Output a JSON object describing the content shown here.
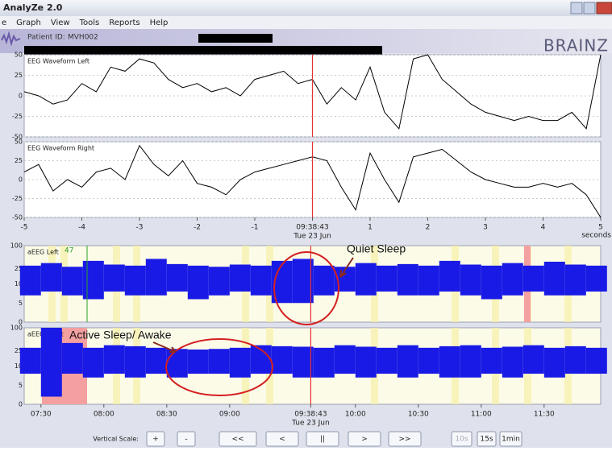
{
  "window": {
    "title": "AnalyZe 2.0"
  },
  "menu": [
    "e",
    "Graph",
    "View",
    "Tools",
    "Reports",
    "Help"
  ],
  "patient": {
    "label": "Patient ID:",
    "id": "MVH002"
  },
  "logo": "BRAINZ",
  "chart_data": [
    {
      "type": "line",
      "title": "EEG Waveform Left",
      "color": "#000000",
      "grid": true,
      "xlim": [
        -5,
        5
      ],
      "ylim": [
        -50,
        50
      ],
      "yticks": [
        50,
        25,
        0,
        -25,
        -50
      ],
      "cursor": 0,
      "x": [
        -5,
        -4.75,
        -4.5,
        -4.25,
        -4,
        -3.75,
        -3.5,
        -3.25,
        -3,
        -2.75,
        -2.5,
        -2.25,
        -2,
        -1.75,
        -1.5,
        -1.25,
        -1,
        -0.75,
        -0.5,
        -0.25,
        0,
        0.25,
        0.5,
        0.75,
        1,
        1.25,
        1.5,
        1.75,
        2,
        2.25,
        2.5,
        2.75,
        3,
        3.25,
        3.5,
        3.75,
        4,
        4.25,
        4.5,
        4.75,
        5
      ],
      "values": [
        5,
        0,
        -10,
        -5,
        15,
        5,
        35,
        30,
        45,
        40,
        20,
        10,
        15,
        5,
        10,
        0,
        20,
        25,
        30,
        15,
        20,
        -10,
        10,
        -5,
        35,
        -20,
        -40,
        45,
        50,
        20,
        5,
        -10,
        -20,
        -25,
        -30,
        -25,
        -30,
        -30,
        -20,
        -40,
        50
      ]
    },
    {
      "type": "line",
      "title": "EEG Waveform Right",
      "color": "#000000",
      "grid": true,
      "xlim": [
        -5,
        5
      ],
      "ylim": [
        -50,
        50
      ],
      "yticks": [
        50,
        25,
        0,
        -25,
        -50
      ],
      "cursor": 0,
      "xticks": [
        -5,
        -4,
        -3,
        -2,
        -1,
        {
          "value": 0,
          "label": "09:38:43"
        },
        1,
        2,
        3,
        4,
        5
      ],
      "x_sublabel": "Tue 23 Jun",
      "xlabel": "seconds",
      "x": [
        -5,
        -4.75,
        -4.5,
        -4.25,
        -4,
        -3.75,
        -3.5,
        -3.25,
        -3,
        -2.75,
        -2.5,
        -2.25,
        -2,
        -1.75,
        -1.5,
        -1.25,
        -1,
        -0.75,
        -0.5,
        -0.25,
        0,
        0.25,
        0.5,
        0.75,
        1,
        1.25,
        1.5,
        1.75,
        2,
        2.25,
        2.5,
        2.75,
        3,
        3.25,
        3.5,
        3.75,
        4,
        4.25,
        4.5,
        4.75,
        5
      ],
      "values": [
        10,
        20,
        -15,
        0,
        -10,
        10,
        15,
        0,
        45,
        20,
        5,
        25,
        -5,
        -10,
        -20,
        0,
        10,
        15,
        20,
        25,
        30,
        25,
        -10,
        -40,
        35,
        0,
        -30,
        30,
        35,
        40,
        25,
        10,
        0,
        -5,
        -10,
        -10,
        -5,
        -10,
        -5,
        -20,
        -50
      ]
    },
    {
      "type": "range",
      "title": "aEEG Left",
      "color": "#1a1ae6",
      "scale": "semilog",
      "linear_below": 10,
      "xlim": [
        442,
        717
      ],
      "ylim": [
        0,
        100
      ],
      "yticks": [
        100,
        25,
        10,
        5,
        0
      ],
      "cursor": 578.7,
      "marker_label": "47",
      "annotations": [
        "Quiet Sleep"
      ],
      "x": [
        445,
        455,
        465,
        475,
        485,
        495,
        505,
        515,
        525,
        535,
        545,
        555,
        565,
        575,
        585,
        595,
        605,
        615,
        625,
        635,
        645,
        655,
        665,
        675,
        685,
        695,
        705,
        715
      ],
      "lower": [
        7,
        8,
        7,
        6,
        8,
        7,
        7,
        8,
        6,
        7,
        8,
        7,
        5,
        5,
        7,
        8,
        7,
        8,
        7,
        7,
        8,
        7,
        6,
        7,
        8,
        7,
        7,
        8
      ],
      "upper": [
        30,
        35,
        28,
        40,
        32,
        30,
        45,
        33,
        30,
        28,
        32,
        30,
        40,
        45,
        30,
        28,
        35,
        30,
        33,
        30,
        40,
        32,
        30,
        35,
        30,
        38,
        32,
        30
      ]
    },
    {
      "type": "range",
      "title": "aEEG Right",
      "color": "#1a1ae6",
      "scale": "semilog",
      "linear_below": 10,
      "xlim": [
        442,
        717
      ],
      "ylim": [
        0,
        100
      ],
      "yticks": [
        100,
        25,
        10,
        5,
        0
      ],
      "cursor": 578.7,
      "xticks": [
        {
          "value": 450,
          "label": "07:30"
        },
        {
          "value": 480,
          "label": "08:00"
        },
        {
          "value": 510,
          "label": "08:30"
        },
        {
          "value": 540,
          "label": "09:00"
        },
        {
          "value": 578.7,
          "label": "09:38:43"
        },
        {
          "value": 600,
          "label": "10:00"
        },
        {
          "value": 630,
          "label": "10:30"
        },
        {
          "value": 660,
          "label": "11:00"
        },
        {
          "value": 690,
          "label": "11:30"
        }
      ],
      "x_sublabel": "Tue 23 Jun",
      "annotations": [
        "Active Sleep/ Awake"
      ],
      "x": [
        445,
        455,
        465,
        475,
        485,
        495,
        505,
        515,
        525,
        535,
        545,
        555,
        565,
        575,
        585,
        595,
        605,
        615,
        625,
        635,
        645,
        655,
        665,
        675,
        685,
        695,
        705,
        715
      ],
      "lower": [
        8,
        2,
        8,
        7,
        8,
        7,
        8,
        7,
        8,
        8,
        7,
        8,
        8,
        7,
        7,
        8,
        7,
        8,
        7,
        8,
        7,
        7,
        8,
        7,
        8,
        7,
        8,
        8
      ],
      "upper": [
        30,
        100,
        40,
        30,
        35,
        33,
        30,
        28,
        27,
        28,
        30,
        35,
        33,
        32,
        30,
        35,
        32,
        30,
        35,
        30,
        33,
        35,
        30,
        32,
        35,
        30,
        33,
        30
      ]
    }
  ],
  "controls": {
    "vertical_scale_label": "Vertical Scale:",
    "buttons": [
      "+",
      "-",
      "<<",
      "<",
      "||",
      ">",
      ">>",
      "10s",
      "15s",
      "1min"
    ]
  }
}
